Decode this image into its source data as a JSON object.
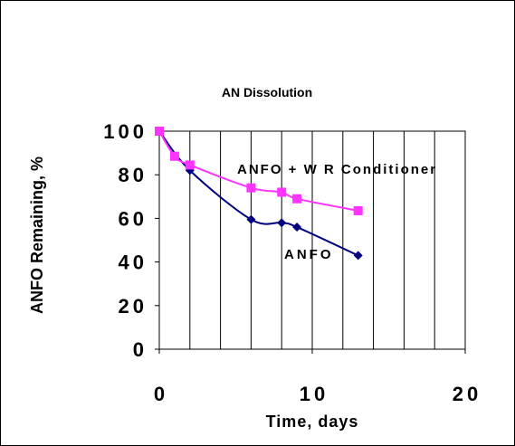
{
  "chart_data": {
    "type": "line",
    "title": "AN Dissolution",
    "xlabel": "Time, days",
    "ylabel": "ANFO Remaining, %",
    "xlim": [
      0,
      20
    ],
    "ylim": [
      0,
      100
    ],
    "x_ticks": [
      "0",
      "10",
      "20"
    ],
    "y_ticks": [
      "0",
      "20",
      "40",
      "60",
      "80",
      "100"
    ],
    "grid": "vertical",
    "series": [
      {
        "name": "ANFO",
        "color": "#000080",
        "marker": "diamond",
        "x": [
          0,
          2,
          6,
          8,
          9,
          13
        ],
        "y": [
          100,
          82,
          59.5,
          58,
          56,
          43
        ]
      },
      {
        "name": "ANFO + W R Conditioner",
        "color": "#ff33ff",
        "marker": "square",
        "x": [
          0,
          1,
          2,
          6,
          8,
          9,
          13
        ],
        "y": [
          100,
          88.5,
          84.5,
          74,
          72,
          69,
          63.5
        ]
      }
    ]
  }
}
